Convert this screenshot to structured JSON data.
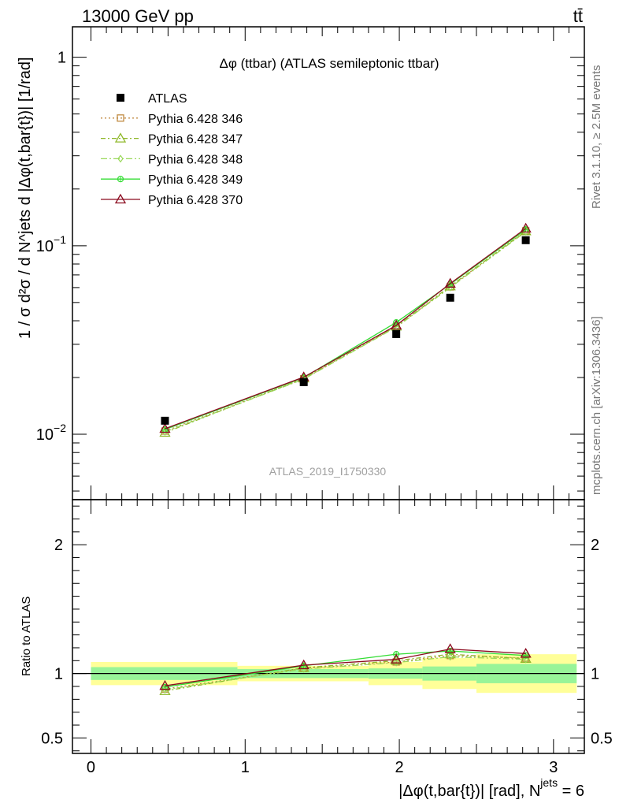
{
  "header": {
    "left_label": "13000 GeV pp",
    "right_label": "tt̄"
  },
  "side_labels": {
    "rivet": "Rivet 3.1.10, ≥ 2.5M events",
    "mcplots": "mcplots.cern.ch [arXiv:1306.3436]"
  },
  "chart_data": [
    {
      "type": "line",
      "title": "Δφ (ttbar) (ATLAS semileptonic ttbar)",
      "ylabel": "1 / σ d²σ / d N^jets d |Δφ(t,bar{t})| [1/rad]",
      "watermark": "ATLAS_2019_I1750330",
      "yscale": "log",
      "ylim": [
        0.0045,
        1.45
      ],
      "xlim": [
        -0.12,
        3.2
      ],
      "grid": false,
      "legend_position": "top-left",
      "y_ticks": [
        {
          "value": 1,
          "label": "1"
        },
        {
          "value": 0.1,
          "label": "10",
          "exp": "−1"
        },
        {
          "value": 0.01,
          "label": "10",
          "exp": "−2"
        }
      ],
      "x": [
        0.48,
        1.38,
        1.98,
        2.33,
        2.82
      ],
      "series": [
        {
          "name": "ATLAS",
          "values": [
            0.0118,
            0.0189,
            0.034,
            0.053,
            0.107
          ],
          "color": "#000000",
          "marker": "square-filled",
          "line": "none"
        },
        {
          "name": "Pythia 6.428 346",
          "values": [
            0.0104,
            0.0197,
            0.0372,
            0.0605,
            0.12
          ],
          "color": "#c08a40",
          "marker": "square-open",
          "line": "dotted"
        },
        {
          "name": "Pythia 6.428 347",
          "values": [
            0.0102,
            0.0198,
            0.0373,
            0.061,
            0.1195
          ],
          "color": "#8fb82a",
          "marker": "triangle-open",
          "line": "dashdot"
        },
        {
          "name": "Pythia 6.428 348",
          "values": [
            0.0103,
            0.0196,
            0.037,
            0.06,
            0.1185
          ],
          "color": "#9ad85a",
          "marker": "diamond-open",
          "line": "dashdot2"
        },
        {
          "name": "Pythia 6.428 349",
          "values": [
            0.0106,
            0.02,
            0.0392,
            0.0625,
            0.122
          ],
          "color": "#33dd33",
          "marker": "circle-cross",
          "line": "solid"
        },
        {
          "name": "Pythia 6.428 370",
          "values": [
            0.0107,
            0.0201,
            0.0378,
            0.063,
            0.1235
          ],
          "color": "#8b0a1f",
          "marker": "triangle-open",
          "line": "solid"
        }
      ]
    },
    {
      "type": "line",
      "ylabel": "Ratio to ATLAS",
      "xlabel": "|Δφ(t,bar{t})| [rad], N",
      "xlabel_sup": "jets",
      "xlabel_tail": " = 6",
      "ylim": [
        0.38,
        2.35
      ],
      "xlim": [
        -0.12,
        3.2
      ],
      "grid": false,
      "y_ticks": [
        {
          "value": 2,
          "label": "2"
        },
        {
          "value": 1,
          "label": "1"
        },
        {
          "value": 0.5,
          "label": "0.5"
        }
      ],
      "x_ticks": [
        {
          "value": 0,
          "label": "0"
        },
        {
          "value": 1,
          "label": "1"
        },
        {
          "value": 2,
          "label": "2"
        },
        {
          "value": 3,
          "label": "3"
        }
      ],
      "x": [
        0.48,
        1.38,
        1.98,
        2.33,
        2.82
      ],
      "uncertainty_bands": [
        {
          "x0": 0.0,
          "x1": 0.95,
          "stat": [
            0.95,
            1.05
          ],
          "total": [
            0.91,
            1.09
          ]
        },
        {
          "x0": 0.95,
          "x1": 1.8,
          "stat": [
            0.965,
            1.035
          ],
          "total": [
            0.94,
            1.06
          ]
        },
        {
          "x0": 1.8,
          "x1": 2.15,
          "stat": [
            0.96,
            1.04
          ],
          "total": [
            0.91,
            1.09
          ]
        },
        {
          "x0": 2.15,
          "x1": 2.5,
          "stat": [
            0.945,
            1.055
          ],
          "total": [
            0.88,
            1.12
          ]
        },
        {
          "x0": 2.5,
          "x1": 3.15,
          "stat": [
            0.925,
            1.075
          ],
          "total": [
            0.85,
            1.15
          ]
        }
      ],
      "series": [
        {
          "name": "Pythia 6.428 346",
          "values": [
            0.88,
            1.04,
            1.09,
            1.14,
            1.12
          ],
          "color": "#c08a40",
          "marker": "square-open",
          "line": "dotted"
        },
        {
          "name": "Pythia 6.428 347",
          "values": [
            0.865,
            1.045,
            1.1,
            1.15,
            1.115
          ],
          "color": "#8fb82a",
          "marker": "triangle-open",
          "line": "dashdot"
        },
        {
          "name": "Pythia 6.428 348",
          "values": [
            0.875,
            1.035,
            1.085,
            1.13,
            1.11
          ],
          "color": "#9ad85a",
          "marker": "diamond-open",
          "line": "dashdot2"
        },
        {
          "name": "Pythia 6.428 349",
          "values": [
            0.895,
            1.06,
            1.15,
            1.175,
            1.14
          ],
          "color": "#33dd33",
          "marker": "circle-cross",
          "line": "solid"
        },
        {
          "name": "Pythia 6.428 370",
          "values": [
            0.905,
            1.065,
            1.11,
            1.19,
            1.155
          ],
          "color": "#8b0a1f",
          "marker": "triangle-open",
          "line": "solid"
        }
      ]
    }
  ]
}
